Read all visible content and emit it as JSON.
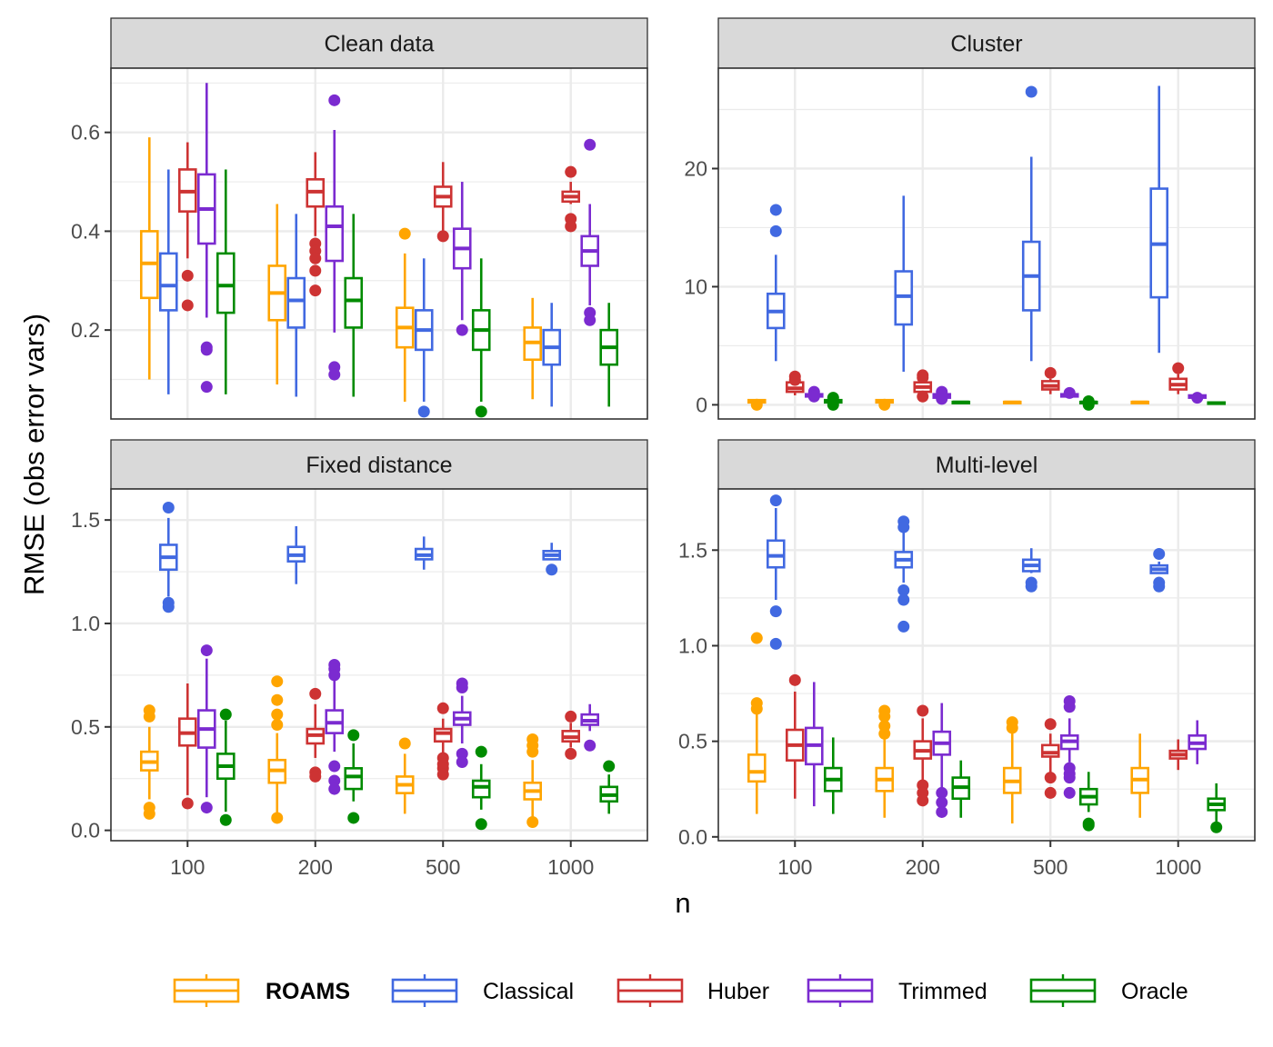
{
  "chart_data": {
    "type": "boxplot",
    "layout": "facet_wrap 2x2",
    "xlabel": "n",
    "ylabel": "RMSE (obs error vars)",
    "categories": [
      "100",
      "200",
      "500",
      "1000"
    ],
    "methods": [
      {
        "name": "ROAMS",
        "color": "#FFA500",
        "bold": true
      },
      {
        "name": "Classical",
        "color": "#4169E1",
        "bold": false
      },
      {
        "name": "Huber",
        "color": "#CD3333",
        "bold": false
      },
      {
        "name": "Trimmed",
        "color": "#7B2BD0",
        "bold": false
      },
      {
        "name": "Oracle",
        "color": "#008B00",
        "bold": false
      }
    ],
    "legend_position": "bottom",
    "grid": true,
    "panels": [
      {
        "title": "Clean data",
        "ylim": [
          0.02,
          0.73
        ],
        "yticks": [
          0.2,
          0.4,
          0.6
        ],
        "ytick_labels": [
          "0.2",
          "0.4",
          "0.6"
        ],
        "minor_yticks": [
          0.1,
          0.3,
          0.5,
          0.7
        ],
        "boxes": {
          "ROAMS": [
            [
              0.1,
              0.265,
              0.335,
              0.4,
              0.59,
              []
            ],
            [
              0.09,
              0.22,
              0.275,
              0.33,
              0.455,
              []
            ],
            [
              0.055,
              0.165,
              0.205,
              0.245,
              0.355,
              [
                0.395
              ]
            ],
            [
              0.06,
              0.14,
              0.175,
              0.205,
              0.265,
              []
            ]
          ],
          "Classical": [
            [
              0.07,
              0.24,
              0.29,
              0.355,
              0.525,
              []
            ],
            [
              0.065,
              0.205,
              0.26,
              0.305,
              0.435,
              []
            ],
            [
              0.055,
              0.16,
              0.2,
              0.24,
              0.345,
              [
                0.035
              ]
            ],
            [
              0.045,
              0.13,
              0.165,
              0.2,
              0.255,
              []
            ]
          ],
          "Huber": [
            [
              0.345,
              0.44,
              0.48,
              0.525,
              0.58,
              [
                0.31,
                0.25
              ]
            ],
            [
              0.39,
              0.45,
              0.48,
              0.505,
              0.56,
              [
                0.375,
                0.36,
                0.345,
                0.32,
                0.28
              ]
            ],
            [
              0.4,
              0.45,
              0.47,
              0.49,
              0.54,
              [
                0.39
              ]
            ],
            [
              0.455,
              0.46,
              0.47,
              0.48,
              0.5,
              [
                0.52,
                0.425,
                0.41
              ]
            ]
          ],
          "Trimmed": [
            [
              0.225,
              0.375,
              0.445,
              0.515,
              0.7,
              [
                0.165,
                0.16,
                0.085
              ]
            ],
            [
              0.195,
              0.34,
              0.41,
              0.45,
              0.605,
              [
                0.665,
                0.125,
                0.11
              ]
            ],
            [
              0.22,
              0.325,
              0.365,
              0.405,
              0.5,
              [
                0.2
              ]
            ],
            [
              0.25,
              0.33,
              0.36,
              0.39,
              0.455,
              [
                0.575,
                0.235,
                0.22
              ]
            ]
          ],
          "Oracle": [
            [
              0.07,
              0.235,
              0.29,
              0.355,
              0.525,
              []
            ],
            [
              0.065,
              0.205,
              0.26,
              0.305,
              0.435,
              []
            ],
            [
              0.055,
              0.16,
              0.2,
              0.24,
              0.345,
              [
                0.035
              ]
            ],
            [
              0.045,
              0.13,
              0.165,
              0.2,
              0.255,
              []
            ]
          ]
        }
      },
      {
        "title": "Cluster",
        "ylim": [
          -1.2,
          28.5
        ],
        "yticks": [
          0,
          10,
          20
        ],
        "ytick_labels": [
          "0",
          "10",
          "20"
        ],
        "minor_yticks": [
          5,
          15,
          25
        ],
        "boxes": {
          "ROAMS": [
            [
              0.1,
              0.2,
              0.3,
              0.4,
              0.5,
              [
                0.0
              ]
            ],
            [
              0.1,
              0.2,
              0.3,
              0.4,
              0.5,
              [
                0.0
              ]
            ],
            [
              0.1,
              0.15,
              0.2,
              0.25,
              0.3,
              []
            ],
            [
              0.1,
              0.15,
              0.2,
              0.25,
              0.3,
              []
            ]
          ],
          "Classical": [
            [
              3.7,
              6.5,
              7.9,
              9.4,
              12.7,
              [
                16.5,
                14.7
              ]
            ],
            [
              2.8,
              6.8,
              9.2,
              11.3,
              17.7,
              []
            ],
            [
              3.7,
              8.0,
              10.9,
              13.8,
              21.0,
              [
                26.5
              ]
            ],
            [
              4.4,
              9.1,
              13.6,
              18.3,
              27.0,
              []
            ]
          ],
          "Huber": [
            [
              0.8,
              1.1,
              1.4,
              1.9,
              2.0,
              [
                2.4,
                2.1
              ]
            ],
            [
              0.9,
              1.1,
              1.5,
              1.9,
              2.1,
              [
                2.5,
                2.3,
                0.7
              ]
            ],
            [
              0.9,
              1.3,
              1.6,
              2.0,
              2.2,
              [
                2.7
              ]
            ],
            [
              0.9,
              1.3,
              1.7,
              2.2,
              2.6,
              [
                3.1
              ]
            ]
          ],
          "Trimmed": [
            [
              0.6,
              0.7,
              0.8,
              0.9,
              1.0,
              [
                1.1,
                0.7
              ]
            ],
            [
              0.4,
              0.6,
              0.8,
              0.9,
              1.0,
              [
                1.1,
                0.5
              ]
            ],
            [
              0.6,
              0.7,
              0.8,
              0.9,
              1.0,
              [
                1.0
              ]
            ],
            [
              0.5,
              0.6,
              0.7,
              0.8,
              0.9,
              [
                0.6
              ]
            ]
          ],
          "Oracle": [
            [
              0.1,
              0.2,
              0.3,
              0.4,
              0.5,
              [
                0.6,
                0.0
              ]
            ],
            [
              0.1,
              0.15,
              0.2,
              0.25,
              0.3,
              []
            ],
            [
              0.1,
              0.15,
              0.2,
              0.25,
              0.3,
              [
                0.3,
                0.0
              ]
            ],
            [
              0.05,
              0.1,
              0.15,
              0.2,
              0.25,
              []
            ]
          ]
        }
      },
      {
        "title": "Fixed distance",
        "ylim": [
          -0.05,
          1.65
        ],
        "yticks": [
          0.0,
          0.5,
          1.0,
          1.5
        ],
        "ytick_labels": [
          "0.0",
          "0.5",
          "1.0",
          "1.5"
        ],
        "minor_yticks": [
          0.25,
          0.75,
          1.25
        ],
        "boxes": {
          "ROAMS": [
            [
              0.15,
              0.29,
              0.33,
              0.38,
              0.5,
              [
                0.58,
                0.55,
                0.11,
                0.08
              ]
            ],
            [
              0.07,
              0.23,
              0.29,
              0.34,
              0.47,
              [
                0.72,
                0.63,
                0.56,
                0.51,
                0.06
              ]
            ],
            [
              0.08,
              0.18,
              0.22,
              0.26,
              0.37,
              [
                0.42
              ]
            ],
            [
              0.06,
              0.15,
              0.19,
              0.23,
              0.34,
              [
                0.44,
                0.41,
                0.38,
                0.04
              ]
            ]
          ],
          "Classical": [
            [
              1.13,
              1.26,
              1.32,
              1.38,
              1.51,
              [
                1.56,
                1.1,
                1.08
              ]
            ],
            [
              1.19,
              1.3,
              1.33,
              1.37,
              1.47,
              []
            ],
            [
              1.26,
              1.31,
              1.33,
              1.36,
              1.42,
              []
            ],
            [
              1.31,
              1.31,
              1.33,
              1.35,
              1.39,
              [
                1.26
              ]
            ]
          ],
          "Huber": [
            [
              0.17,
              0.41,
              0.47,
              0.54,
              0.71,
              [
                0.13
              ]
            ],
            [
              0.35,
              0.42,
              0.46,
              0.49,
              0.61,
              [
                0.66,
                0.28,
                0.26
              ]
            ],
            [
              0.37,
              0.43,
              0.47,
              0.49,
              0.54,
              [
                0.59,
                0.35,
                0.32,
                0.3,
                0.27
              ]
            ],
            [
              0.4,
              0.43,
              0.45,
              0.48,
              0.52,
              [
                0.55,
                0.37
              ]
            ]
          ],
          "Trimmed": [
            [
              0.16,
              0.4,
              0.49,
              0.58,
              0.83,
              [
                0.87,
                0.11
              ]
            ],
            [
              0.38,
              0.47,
              0.52,
              0.58,
              0.74,
              [
                0.8,
                0.78,
                0.75,
                0.31,
                0.24,
                0.2
              ]
            ],
            [
              0.42,
              0.51,
              0.54,
              0.57,
              0.65,
              [
                0.71,
                0.69,
                0.37,
                0.33
              ]
            ],
            [
              0.48,
              0.51,
              0.53,
              0.56,
              0.61,
              [
                0.41
              ]
            ]
          ],
          "Oracle": [
            [
              0.09,
              0.25,
              0.31,
              0.37,
              0.53,
              [
                0.56,
                0.05
              ]
            ],
            [
              0.14,
              0.2,
              0.26,
              0.3,
              0.42,
              [
                0.46,
                0.06
              ]
            ],
            [
              0.1,
              0.16,
              0.21,
              0.24,
              0.32,
              [
                0.38,
                0.03
              ]
            ],
            [
              0.08,
              0.14,
              0.17,
              0.21,
              0.27,
              [
                0.31
              ]
            ]
          ]
        }
      },
      {
        "title": "Multi-level",
        "ylim": [
          -0.02,
          1.82
        ],
        "yticks": [
          0.0,
          0.5,
          1.0,
          1.5
        ],
        "ytick_labels": [
          "0.0",
          "0.5",
          "1.0",
          "1.5"
        ],
        "minor_yticks": [
          0.25,
          0.75,
          1.25
        ],
        "boxes": {
          "ROAMS": [
            [
              0.12,
              0.29,
              0.34,
              0.43,
              0.65,
              [
                1.04,
                0.7,
                0.67
              ]
            ],
            [
              0.1,
              0.24,
              0.3,
              0.36,
              0.53,
              [
                0.66,
                0.63,
                0.58,
                0.54
              ]
            ],
            [
              0.07,
              0.23,
              0.29,
              0.36,
              0.55,
              [
                0.6,
                0.57
              ]
            ],
            [
              0.1,
              0.23,
              0.3,
              0.36,
              0.54,
              []
            ]
          ],
          "Classical": [
            [
              1.24,
              1.41,
              1.47,
              1.55,
              1.72,
              [
                1.76,
                1.18,
                1.01
              ]
            ],
            [
              1.33,
              1.41,
              1.45,
              1.49,
              1.6,
              [
                1.65,
                1.62,
                1.29,
                1.24,
                1.1
              ]
            ],
            [
              1.38,
              1.39,
              1.42,
              1.45,
              1.51,
              [
                1.33,
                1.31
              ]
            ],
            [
              1.38,
              1.38,
              1.4,
              1.42,
              1.44,
              [
                1.48,
                1.33,
                1.31
              ]
            ]
          ],
          "Huber": [
            [
              0.2,
              0.4,
              0.48,
              0.56,
              0.76,
              [
                0.82
              ]
            ],
            [
              0.28,
              0.41,
              0.45,
              0.5,
              0.62,
              [
                0.66,
                0.27,
                0.23,
                0.19
              ]
            ],
            [
              0.33,
              0.42,
              0.44,
              0.48,
              0.54,
              [
                0.59,
                0.31,
                0.23
              ]
            ],
            [
              0.35,
              0.41,
              0.43,
              0.45,
              0.51,
              []
            ]
          ],
          "Trimmed": [
            [
              0.16,
              0.38,
              0.48,
              0.57,
              0.81,
              []
            ],
            [
              0.26,
              0.43,
              0.49,
              0.55,
              0.7,
              [
                0.23,
                0.18,
                0.13
              ]
            ],
            [
              0.39,
              0.46,
              0.5,
              0.53,
              0.62,
              [
                0.71,
                0.68,
                0.36,
                0.33,
                0.31,
                0.23
              ]
            ],
            [
              0.38,
              0.46,
              0.49,
              0.53,
              0.61,
              []
            ]
          ],
          "Oracle": [
            [
              0.12,
              0.24,
              0.3,
              0.36,
              0.52,
              []
            ],
            [
              0.1,
              0.2,
              0.26,
              0.31,
              0.4,
              []
            ],
            [
              0.13,
              0.17,
              0.21,
              0.25,
              0.34,
              [
                0.07,
                0.06
              ]
            ],
            [
              0.08,
              0.14,
              0.17,
              0.2,
              0.28,
              [
                0.05
              ]
            ]
          ]
        }
      }
    ]
  }
}
